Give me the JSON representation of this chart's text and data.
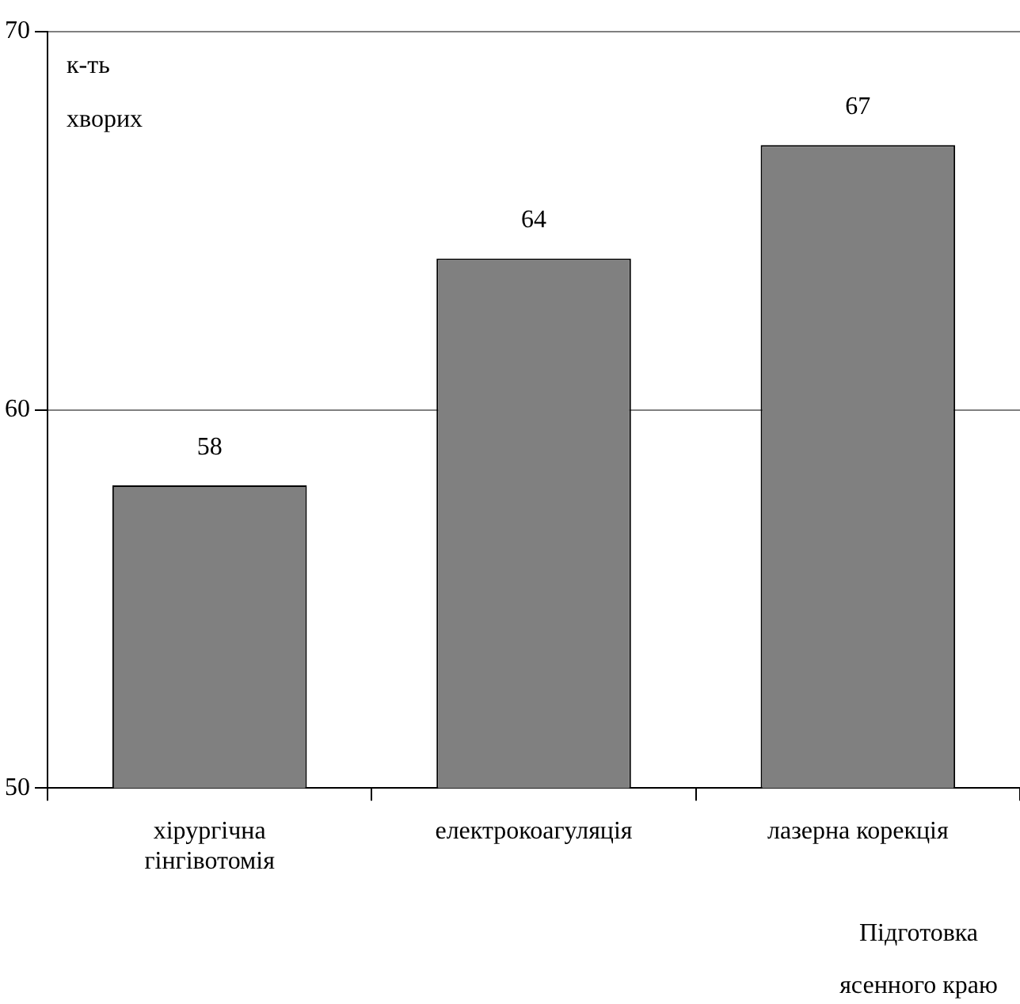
{
  "chart_data": {
    "type": "bar",
    "ylabel": "к-ть хворих",
    "xlabel": "Підготовка ясенного краю",
    "categories": [
      "хірургічна гінгівотомія",
      "електрокоагуляція",
      "лазерна корекція"
    ],
    "values": [
      58,
      64,
      67
    ],
    "color": "#808080",
    "ylim": [
      50,
      70
    ],
    "yticks": [
      50,
      60,
      70
    ],
    "grid": "y",
    "data_labels": true,
    "legend": false
  }
}
